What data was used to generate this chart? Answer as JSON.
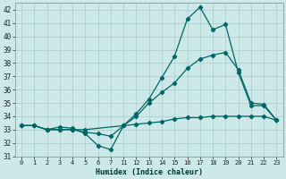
{
  "xlabel": "Humidex (Indice chaleur)",
  "background_color": "#cce8e8",
  "grid_color": "#aacccc",
  "line_color": "#006666",
  "tick_labels": [
    "0",
    "1",
    "2",
    "3",
    "4",
    "5",
    "6",
    "7",
    "11",
    "12",
    "13",
    "14",
    "15",
    "16",
    "17",
    "18",
    "19",
    "20",
    "21",
    "22",
    "23"
  ],
  "ylim": [
    31,
    42.5
  ],
  "yticks": [
    31,
    32,
    33,
    34,
    35,
    36,
    37,
    38,
    39,
    40,
    41,
    42
  ],
  "lines": [
    {
      "xi": [
        0,
        1,
        2,
        3,
        4,
        5,
        6,
        7,
        8,
        9,
        10,
        11,
        12,
        13,
        14,
        15,
        16,
        17,
        18,
        19,
        20
      ],
      "y": [
        33.3,
        33.3,
        33.0,
        33.2,
        33.1,
        32.7,
        31.8,
        31.5,
        33.3,
        34.2,
        35.3,
        36.9,
        38.5,
        41.3,
        42.2,
        40.5,
        40.9,
        37.3,
        34.8,
        34.8,
        33.7
      ]
    },
    {
      "xi": [
        0,
        1,
        2,
        3,
        4,
        5,
        6,
        7,
        8,
        9,
        10,
        11,
        12,
        13,
        14,
        15,
        16,
        17,
        18,
        19,
        20
      ],
      "y": [
        33.3,
        33.3,
        33.0,
        33.0,
        33.0,
        32.8,
        32.7,
        32.5,
        33.3,
        34.0,
        35.0,
        35.8,
        36.5,
        37.6,
        38.3,
        38.6,
        38.8,
        37.5,
        35.0,
        34.9,
        33.7
      ]
    },
    {
      "xi": [
        0,
        1,
        2,
        3,
        4,
        5,
        8,
        9,
        10,
        11,
        12,
        13,
        14,
        15,
        16,
        17,
        18,
        19,
        20
      ],
      "y": [
        33.3,
        33.3,
        33.0,
        33.0,
        33.0,
        33.0,
        33.3,
        33.4,
        33.5,
        33.6,
        33.8,
        33.9,
        33.9,
        34.0,
        34.0,
        34.0,
        34.0,
        34.0,
        33.7
      ]
    }
  ]
}
